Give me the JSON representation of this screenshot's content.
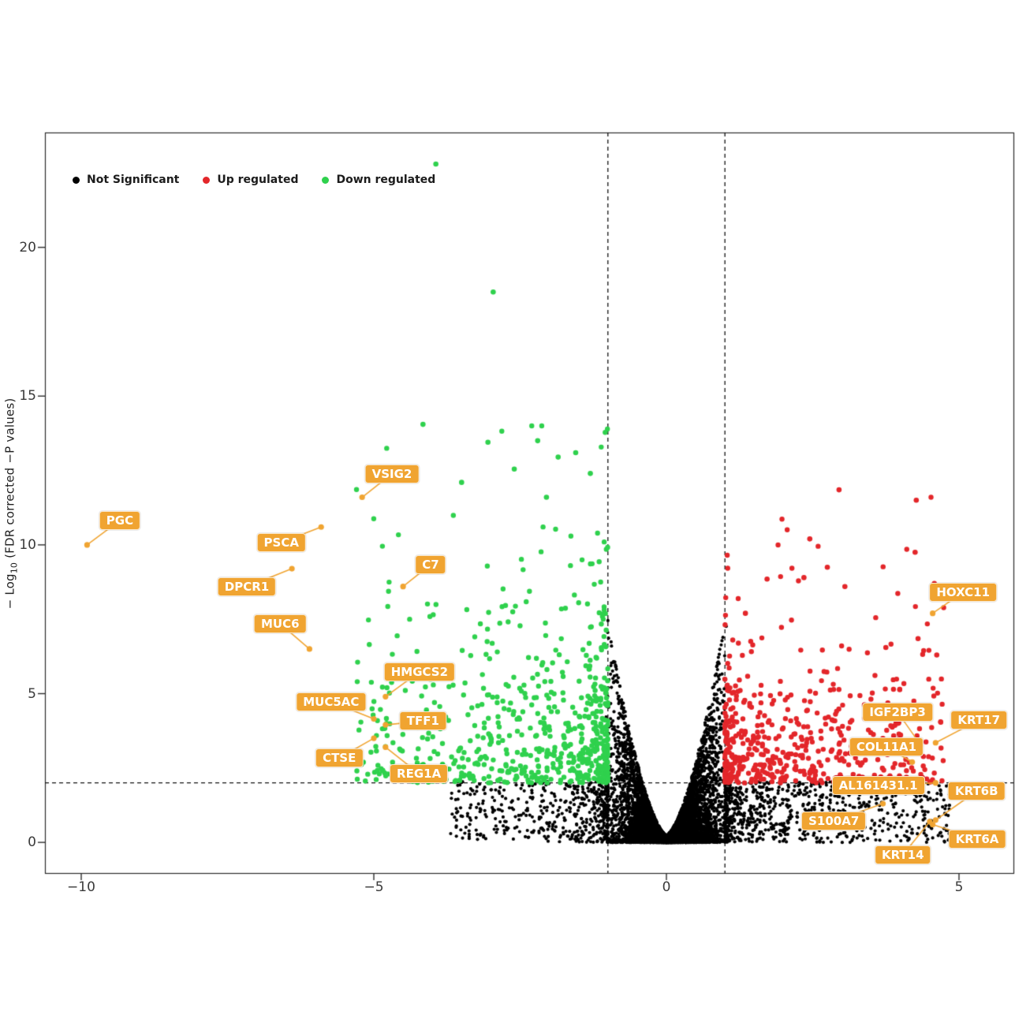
{
  "legend": {
    "items": [
      {
        "id": "not-significant",
        "label": "Not Significant",
        "color": "#000000"
      },
      {
        "id": "up-regulated",
        "label": "Up regulated",
        "color": "#e3262a"
      },
      {
        "id": "down-regulated",
        "label": "Down regulated",
        "color": "#2fd14d"
      }
    ]
  },
  "axes": {
    "ylabel_prefix": "− Log",
    "ylabel_sub": "10",
    "ylabel_suffix": " (FDR corrected −P values)",
    "xlabel": "",
    "x_tick_labels": [
      "−10",
      "−5",
      "0",
      "5"
    ],
    "x_tick_values": [
      -10,
      -5,
      0,
      5
    ],
    "y_tick_labels": [
      "0",
      "5",
      "10",
      "15",
      "20"
    ],
    "y_tick_values": [
      0,
      5,
      10,
      15,
      20
    ],
    "xlim": [
      -10.62,
      5.93
    ],
    "ylim": [
      -1.03,
      23.86
    ],
    "grid": false,
    "legend_position": "top-left-inside"
  },
  "chart_data": {
    "type": "scatter",
    "title": "",
    "thresholds": {
      "log2fc": [
        -1,
        1
      ],
      "neglog10p": 2
    },
    "series_colors": {
      "not_significant": "#000000",
      "up": "#e3262a",
      "down": "#2fd14d"
    },
    "labeled_genes": [
      {
        "gene": "PGC",
        "x": -9.9,
        "y": 10.0,
        "lx": -9.34,
        "ly": 10.82
      },
      {
        "gene": "VSIG2",
        "x": -5.2,
        "y": 11.6,
        "lx": -4.69,
        "ly": 12.39
      },
      {
        "gene": "PSCA",
        "x": -5.9,
        "y": 10.6,
        "lx": -6.58,
        "ly": 10.08
      },
      {
        "gene": "C7",
        "x": -4.5,
        "y": 8.6,
        "lx": -4.03,
        "ly": 9.34
      },
      {
        "gene": "DPCR1",
        "x": -6.4,
        "y": 9.2,
        "lx": -7.17,
        "ly": 8.59
      },
      {
        "gene": "MUC6",
        "x": -6.1,
        "y": 6.5,
        "lx": -6.6,
        "ly": 7.35
      },
      {
        "gene": "HMGCS2",
        "x": -4.8,
        "y": 4.9,
        "lx": -4.22,
        "ly": 5.73
      },
      {
        "gene": "MUC5AC",
        "x": -5.0,
        "y": 4.15,
        "lx": -5.73,
        "ly": 4.72
      },
      {
        "gene": "TFF1",
        "x": -4.8,
        "y": 3.95,
        "lx": -4.16,
        "ly": 4.08
      },
      {
        "gene": "CTSE",
        "x": -5.0,
        "y": 3.5,
        "lx": -5.59,
        "ly": 2.84
      },
      {
        "gene": "REG1A",
        "x": -4.8,
        "y": 3.2,
        "lx": -4.23,
        "ly": 2.31
      },
      {
        "gene": "HOXC11",
        "x": 4.55,
        "y": 7.7,
        "lx": 5.07,
        "ly": 8.41
      },
      {
        "gene": "IGF2BP3",
        "x": 4.3,
        "y": 3.4,
        "lx": 3.95,
        "ly": 4.38
      },
      {
        "gene": "KRT17",
        "x": 4.6,
        "y": 3.35,
        "lx": 5.34,
        "ly": 4.11
      },
      {
        "gene": "COL11A1",
        "x": 4.2,
        "y": 2.7,
        "lx": 3.76,
        "ly": 3.21
      },
      {
        "gene": "AL161431.1",
        "x": 4.6,
        "y": 2.0,
        "lx": 3.62,
        "ly": 1.91
      },
      {
        "gene": "KRT6B",
        "x": 4.6,
        "y": 0.75,
        "lx": 5.3,
        "ly": 1.72
      },
      {
        "gene": "S100A7",
        "x": 3.7,
        "y": 1.3,
        "lx": 2.86,
        "ly": 0.72
      },
      {
        "gene": "KRT6A",
        "x": 4.55,
        "y": 0.6,
        "lx": 5.31,
        "ly": 0.11
      },
      {
        "gene": "KRT14",
        "x": 4.5,
        "y": 0.7,
        "lx": 4.04,
        "ly": -0.42
      }
    ],
    "outliers": {
      "down": [
        [
          -3.94,
          22.8
        ],
        [
          -2.96,
          18.5
        ],
        [
          -4.16,
          14.05
        ],
        [
          -3.05,
          13.45
        ],
        [
          -2.2,
          13.5
        ],
        [
          -1.85,
          12.95
        ],
        [
          -2.6,
          12.55
        ],
        [
          -1.55,
          13.1
        ],
        [
          -3.5,
          12.1
        ],
        [
          -2.05,
          11.6
        ],
        [
          -1.3,
          12.4
        ]
      ],
      "up": [
        [
          2.95,
          11.85
        ],
        [
          4.27,
          11.5
        ],
        [
          2.45,
          10.2
        ],
        [
          4.25,
          9.75
        ],
        [
          2.75,
          9.25
        ],
        [
          1.72,
          8.85
        ],
        [
          3.05,
          8.6
        ],
        [
          2.35,
          8.9
        ],
        [
          4.3,
          6.85
        ],
        [
          4.62,
          6.3
        ],
        [
          3.75,
          6.55
        ],
        [
          1.35,
          7.7
        ]
      ]
    },
    "clouds": {
      "seed": 42,
      "black_core": {
        "n": 7000,
        "x_spread": 1.06,
        "y_envelope_base": 0.25,
        "y_envelope_gain": 7.9,
        "y_envelope_pow": 1.55,
        "y_fill_pow": 1.8
      },
      "black_right_wing": {
        "n": 800,
        "x_offset_max": 3.85,
        "x_pow": 2.0,
        "y_max": 2.05
      },
      "black_left_wing": {
        "n": 500,
        "x_offset_max": 2.7,
        "x_pow": 2.2,
        "y_max": 2.05
      },
      "down": {
        "n": 660,
        "x_offset_max": 4.3,
        "x_pow": 1.85,
        "y_scale": 2.1,
        "y_cap": 14.0
      },
      "up": {
        "n": 540,
        "x_offset_max": 3.75,
        "x_pow": 1.85,
        "y_scale": 1.55,
        "y_cap": 11.6
      }
    }
  },
  "annotation_style": {
    "box_bg": "#f0a431",
    "box_border": "#e0921c",
    "text_color": "#ffffff",
    "leader_color": "#f0a431",
    "labeled_point_color": "#f0a431"
  },
  "plot_style": {
    "frame_color": "#2b2b2b",
    "dash_color": "#111111",
    "background": "#ffffff"
  }
}
